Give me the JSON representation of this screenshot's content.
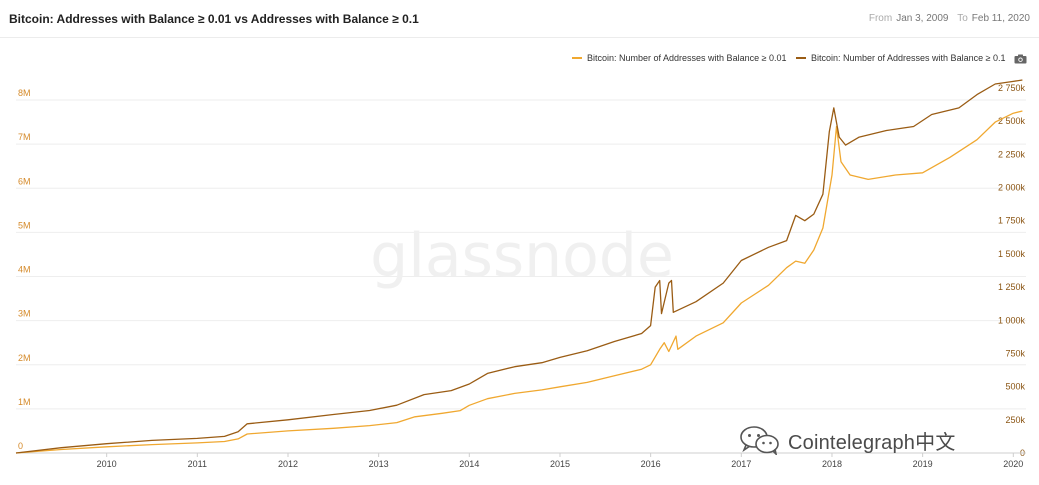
{
  "header": {
    "title": "Bitcoin: Addresses with Balance ≥ 0.01 vs Addresses with Balance ≥ 0.1",
    "from_label": "From",
    "from_date": "Jan 3, 2009",
    "to_label": "To",
    "to_date": "Feb 11, 2020"
  },
  "legend": {
    "series1": "Bitcoin: Number of Addresses with Balance ≥ 0.01",
    "series2": "Bitcoin: Number of Addresses with Balance ≥ 0.1",
    "camera_icon": "camera-icon"
  },
  "watermark": {
    "text": "glassnode"
  },
  "overlay": {
    "text": "Cointelegraph中文",
    "icon": "wechat-icon"
  },
  "colors": {
    "series1": "#f0a830",
    "series2": "#9a5c14",
    "left_axis": "#d58a2a",
    "right_axis": "#8a5412",
    "grid": "#eeeeee"
  },
  "chart_data": {
    "type": "line",
    "title": "Bitcoin: Addresses with Balance ≥ 0.01 vs Addresses with Balance ≥ 0.1",
    "x_ticks": [
      "2010",
      "2011",
      "2012",
      "2013",
      "2014",
      "2015",
      "2016",
      "2017",
      "2018",
      "2019",
      "2020"
    ],
    "y_left": {
      "range": [
        0,
        8000000
      ],
      "ticks": [
        "0",
        "1M",
        "2M",
        "3M",
        "4M",
        "5M",
        "6M",
        "7M",
        "8M"
      ]
    },
    "y_right": {
      "range": [
        0,
        2750000
      ],
      "ticks": [
        "0",
        "250k",
        "500k",
        "750k",
        "1 000k",
        "1 250k",
        "1 500k",
        "1 750k",
        "2 000k",
        "2 250k",
        "2 500k",
        "2 750k"
      ]
    },
    "grid": true,
    "legend_position": "top-right",
    "series": [
      {
        "name": "Bitcoin: Number of Addresses with Balance ≥ 0.01",
        "axis": "left",
        "points": [
          [
            2009.0,
            0
          ],
          [
            2009.5,
            80000
          ],
          [
            2010.0,
            140000
          ],
          [
            2010.5,
            190000
          ],
          [
            2011.0,
            230000
          ],
          [
            2011.3,
            260000
          ],
          [
            2011.45,
            320000
          ],
          [
            2011.55,
            430000
          ],
          [
            2012.0,
            500000
          ],
          [
            2012.5,
            560000
          ],
          [
            2012.9,
            620000
          ],
          [
            2013.2,
            690000
          ],
          [
            2013.4,
            820000
          ],
          [
            2013.7,
            900000
          ],
          [
            2013.9,
            960000
          ],
          [
            2014.0,
            1080000
          ],
          [
            2014.2,
            1230000
          ],
          [
            2014.5,
            1350000
          ],
          [
            2014.8,
            1430000
          ],
          [
            2015.0,
            1500000
          ],
          [
            2015.3,
            1600000
          ],
          [
            2015.6,
            1750000
          ],
          [
            2015.9,
            1900000
          ],
          [
            2016.0,
            2000000
          ],
          [
            2016.1,
            2350000
          ],
          [
            2016.15,
            2500000
          ],
          [
            2016.2,
            2300000
          ],
          [
            2016.28,
            2650000
          ],
          [
            2016.3,
            2350000
          ],
          [
            2016.5,
            2650000
          ],
          [
            2016.8,
            2950000
          ],
          [
            2017.0,
            3400000
          ],
          [
            2017.3,
            3800000
          ],
          [
            2017.5,
            4200000
          ],
          [
            2017.6,
            4350000
          ],
          [
            2017.7,
            4300000
          ],
          [
            2017.8,
            4600000
          ],
          [
            2017.9,
            5100000
          ],
          [
            2018.0,
            6300000
          ],
          [
            2018.05,
            7400000
          ],
          [
            2018.1,
            6600000
          ],
          [
            2018.2,
            6300000
          ],
          [
            2018.4,
            6200000
          ],
          [
            2018.7,
            6300000
          ],
          [
            2019.0,
            6350000
          ],
          [
            2019.3,
            6700000
          ],
          [
            2019.6,
            7100000
          ],
          [
            2019.8,
            7500000
          ],
          [
            2020.0,
            7700000
          ],
          [
            2020.1,
            7750000
          ]
        ]
      },
      {
        "name": "Bitcoin: Number of Addresses with Balance ≥ 0.1",
        "axis": "right",
        "points": [
          [
            2009.0,
            0
          ],
          [
            2009.5,
            40000
          ],
          [
            2010.0,
            70000
          ],
          [
            2010.5,
            95000
          ],
          [
            2011.0,
            110000
          ],
          [
            2011.3,
            125000
          ],
          [
            2011.45,
            160000
          ],
          [
            2011.55,
            220000
          ],
          [
            2012.0,
            250000
          ],
          [
            2012.5,
            290000
          ],
          [
            2012.9,
            320000
          ],
          [
            2013.2,
            360000
          ],
          [
            2013.5,
            440000
          ],
          [
            2013.8,
            470000
          ],
          [
            2014.0,
            520000
          ],
          [
            2014.2,
            600000
          ],
          [
            2014.5,
            650000
          ],
          [
            2014.8,
            680000
          ],
          [
            2015.0,
            720000
          ],
          [
            2015.3,
            770000
          ],
          [
            2015.6,
            840000
          ],
          [
            2015.9,
            900000
          ],
          [
            2016.0,
            960000
          ],
          [
            2016.05,
            1250000
          ],
          [
            2016.1,
            1300000
          ],
          [
            2016.12,
            1050000
          ],
          [
            2016.2,
            1280000
          ],
          [
            2016.23,
            1300000
          ],
          [
            2016.25,
            1060000
          ],
          [
            2016.5,
            1140000
          ],
          [
            2016.8,
            1280000
          ],
          [
            2017.0,
            1450000
          ],
          [
            2017.3,
            1550000
          ],
          [
            2017.5,
            1600000
          ],
          [
            2017.6,
            1790000
          ],
          [
            2017.7,
            1750000
          ],
          [
            2017.8,
            1800000
          ],
          [
            2017.9,
            1950000
          ],
          [
            2017.97,
            2420000
          ],
          [
            2018.02,
            2600000
          ],
          [
            2018.08,
            2380000
          ],
          [
            2018.15,
            2320000
          ],
          [
            2018.3,
            2380000
          ],
          [
            2018.6,
            2430000
          ],
          [
            2018.9,
            2460000
          ],
          [
            2019.1,
            2550000
          ],
          [
            2019.4,
            2600000
          ],
          [
            2019.6,
            2700000
          ],
          [
            2019.8,
            2780000
          ],
          [
            2020.0,
            2800000
          ],
          [
            2020.1,
            2810000
          ]
        ]
      }
    ]
  }
}
